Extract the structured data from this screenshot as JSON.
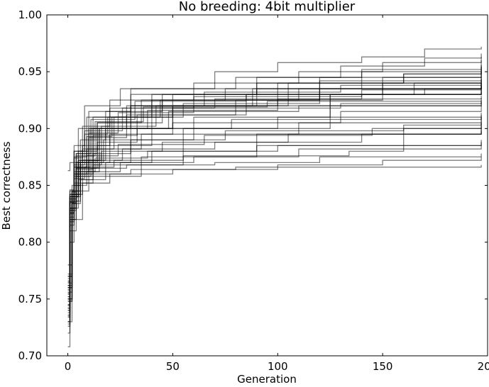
{
  "chart_data": {
    "type": "line",
    "title": "No breeding: 4bit multiplier",
    "xlabel": "Generation",
    "ylabel": "Best correctness",
    "xlim": [
      -10,
      200
    ],
    "ylim": [
      0.7,
      1.0
    ],
    "xticks": [
      0,
      50,
      100,
      150,
      200
    ],
    "yticks": [
      0.7,
      0.75,
      0.8,
      0.85,
      0.9,
      0.95,
      1.0
    ],
    "xtick_labels": [
      "0",
      "50",
      "100",
      "150",
      "200"
    ],
    "ytick_labels": [
      "0.70",
      "0.75",
      "0.80",
      "0.85",
      "0.90",
      "0.95",
      "1.00"
    ],
    "grid": false,
    "legend": "none",
    "line_color": "#000000",
    "series": [
      {
        "x": [
          0,
          1,
          3,
          10,
          30,
          70,
          100,
          140,
          170,
          197
        ],
        "y": [
          0.762,
          0.84,
          0.88,
          0.915,
          0.935,
          0.95,
          0.958,
          0.963,
          0.97,
          0.972
        ]
      },
      {
        "x": [
          0,
          1,
          4,
          12,
          40,
          90,
          130,
          170,
          197
        ],
        "y": [
          0.74,
          0.83,
          0.87,
          0.91,
          0.93,
          0.945,
          0.955,
          0.962,
          0.966
        ]
      },
      {
        "x": [
          0,
          2,
          5,
          20,
          60,
          110,
          150,
          197
        ],
        "y": [
          0.77,
          0.845,
          0.9,
          0.925,
          0.94,
          0.95,
          0.958,
          0.963
        ]
      },
      {
        "x": [
          0,
          1,
          3,
          8,
          25,
          80,
          140,
          197
        ],
        "y": [
          0.75,
          0.835,
          0.885,
          0.92,
          0.935,
          0.945,
          0.952,
          0.956
        ]
      },
      {
        "x": [
          0,
          1,
          4,
          15,
          50,
          120,
          197
        ],
        "y": [
          0.73,
          0.82,
          0.865,
          0.9,
          0.93,
          0.945,
          0.954
        ]
      },
      {
        "x": [
          0,
          2,
          6,
          18,
          45,
          100,
          160,
          197
        ],
        "y": [
          0.78,
          0.85,
          0.89,
          0.915,
          0.93,
          0.94,
          0.948,
          0.952
        ]
      },
      {
        "x": [
          0,
          1,
          3,
          9,
          30,
          90,
          197
        ],
        "y": [
          0.745,
          0.83,
          0.875,
          0.91,
          0.93,
          0.94,
          0.945
        ]
      },
      {
        "x": [
          0,
          1,
          5,
          14,
          35,
          75,
          150,
          197
        ],
        "y": [
          0.755,
          0.84,
          0.88,
          0.905,
          0.925,
          0.935,
          0.94,
          0.943
        ]
      },
      {
        "x": [
          0,
          2,
          4,
          10,
          28,
          65,
          130,
          197
        ],
        "y": [
          0.76,
          0.845,
          0.87,
          0.9,
          0.92,
          0.932,
          0.938,
          0.94
        ]
      },
      {
        "x": [
          0,
          1,
          3,
          12,
          40,
          110,
          197
        ],
        "y": [
          0.728,
          0.815,
          0.86,
          0.9,
          0.925,
          0.935,
          0.938
        ]
      },
      {
        "x": [
          0,
          1,
          4,
          11,
          32,
          85,
          170,
          197
        ],
        "y": [
          0.768,
          0.838,
          0.878,
          0.908,
          0.924,
          0.93,
          0.935,
          0.937
        ]
      },
      {
        "x": [
          0,
          2,
          7,
          22,
          55,
          120,
          197
        ],
        "y": [
          0.772,
          0.842,
          0.882,
          0.91,
          0.922,
          0.93,
          0.934
        ]
      },
      {
        "x": [
          0,
          1,
          3,
          8,
          26,
          70,
          140,
          197
        ],
        "y": [
          0.742,
          0.828,
          0.868,
          0.898,
          0.918,
          0.926,
          0.93,
          0.932
        ]
      },
      {
        "x": [
          0,
          1,
          5,
          16,
          42,
          100,
          197
        ],
        "y": [
          0.752,
          0.836,
          0.872,
          0.902,
          0.92,
          0.926,
          0.929
        ]
      },
      {
        "x": [
          0,
          2,
          4,
          13,
          36,
          95,
          197
        ],
        "y": [
          0.764,
          0.844,
          0.876,
          0.906,
          0.919,
          0.924,
          0.927
        ]
      },
      {
        "x": [
          0,
          1,
          3,
          10,
          24,
          60,
          197
        ],
        "y": [
          0.736,
          0.826,
          0.862,
          0.896,
          0.914,
          0.92,
          0.925
        ]
      },
      {
        "x": [
          0,
          1,
          4,
          9,
          21,
          50,
          130,
          197
        ],
        "y": [
          0.758,
          0.838,
          0.866,
          0.893,
          0.91,
          0.918,
          0.922,
          0.924
        ]
      },
      {
        "x": [
          0,
          2,
          6,
          20,
          48,
          110,
          197
        ],
        "y": [
          0.748,
          0.834,
          0.87,
          0.9,
          0.915,
          0.92,
          0.923
        ]
      },
      {
        "x": [
          0,
          1,
          3,
          7,
          20,
          60,
          140,
          197
        ],
        "y": [
          0.766,
          0.846,
          0.874,
          0.902,
          0.918,
          0.928,
          0.934,
          0.936
        ]
      },
      {
        "x": [
          0,
          1,
          4,
          12,
          33,
          80,
          150,
          197
        ],
        "y": [
          0.744,
          0.83,
          0.864,
          0.894,
          0.912,
          0.925,
          0.935,
          0.94
        ]
      },
      {
        "x": [
          0,
          2,
          5,
          15,
          38,
          100,
          165,
          197
        ],
        "y": [
          0.756,
          0.84,
          0.872,
          0.9,
          0.916,
          0.93,
          0.94,
          0.944
        ]
      },
      {
        "x": [
          0,
          1,
          3,
          11,
          30,
          90,
          197
        ],
        "y": [
          0.738,
          0.826,
          0.866,
          0.9,
          0.92,
          0.935,
          0.942
        ]
      },
      {
        "x": [
          0,
          1,
          4,
          14,
          45,
          120,
          197
        ],
        "y": [
          0.76,
          0.842,
          0.878,
          0.905,
          0.925,
          0.942,
          0.95
        ]
      },
      {
        "x": [
          0,
          2,
          6,
          18,
          50,
          105,
          160,
          197
        ],
        "y": [
          0.75,
          0.836,
          0.872,
          0.9,
          0.92,
          0.94,
          0.948,
          0.955
        ]
      },
      {
        "x": [
          0,
          1,
          3,
          10,
          28,
          85,
          150,
          197
        ],
        "y": [
          0.73,
          0.822,
          0.86,
          0.892,
          0.912,
          0.93,
          0.945,
          0.95
        ]
      },
      {
        "x": [
          0,
          1,
          5,
          17,
          60,
          125,
          197
        ],
        "y": [
          0.762,
          0.842,
          0.87,
          0.89,
          0.91,
          0.93,
          0.94
        ]
      },
      {
        "x": [
          0,
          2,
          4,
          14,
          40,
          100,
          197
        ],
        "y": [
          0.748,
          0.834,
          0.865,
          0.885,
          0.9,
          0.91,
          0.914
        ]
      },
      {
        "x": [
          0,
          1,
          3,
          9,
          35,
          110,
          197
        ],
        "y": [
          0.758,
          0.84,
          0.866,
          0.882,
          0.895,
          0.905,
          0.91
        ]
      },
      {
        "x": [
          0,
          1,
          4,
          12,
          30,
          75,
          160,
          197
        ],
        "y": [
          0.742,
          0.83,
          0.86,
          0.878,
          0.89,
          0.898,
          0.903,
          0.905
        ]
      },
      {
        "x": [
          0,
          2,
          6,
          16,
          45,
          105,
          197
        ],
        "y": [
          0.77,
          0.845,
          0.868,
          0.88,
          0.888,
          0.895,
          0.9
        ]
      },
      {
        "x": [
          0,
          1,
          3,
          10,
          26,
          70,
          140,
          197
        ],
        "y": [
          0.735,
          0.825,
          0.858,
          0.872,
          0.882,
          0.888,
          0.895,
          0.898
        ]
      },
      {
        "x": [
          0,
          1,
          4,
          13,
          38,
          90,
          197
        ],
        "y": [
          0.752,
          0.836,
          0.862,
          0.874,
          0.88,
          0.885,
          0.888
        ]
      },
      {
        "x": [
          0,
          1,
          3,
          8,
          22,
          55,
          134,
          160,
          197
        ],
        "y": [
          0.745,
          0.83,
          0.856,
          0.866,
          0.872,
          0.876,
          0.88,
          0.9,
          0.905
        ]
      },
      {
        "x": [
          0,
          2,
          5,
          15,
          40,
          100,
          197
        ],
        "y": [
          0.76,
          0.84,
          0.862,
          0.87,
          0.88,
          0.885,
          0.89
        ]
      },
      {
        "x": [
          0,
          1,
          3,
          9,
          25,
          60,
          110,
          197
        ],
        "y": [
          0.726,
          0.818,
          0.85,
          0.862,
          0.87,
          0.875,
          0.882,
          0.885
        ]
      },
      {
        "x": [
          0,
          1,
          4,
          11,
          28,
          70,
          120,
          197
        ],
        "y": [
          0.754,
          0.835,
          0.858,
          0.865,
          0.868,
          0.87,
          0.875,
          0.878
        ]
      },
      {
        "x": [
          0,
          2,
          7,
          20,
          50,
          100,
          150,
          197
        ],
        "y": [
          0.73,
          0.82,
          0.852,
          0.86,
          0.864,
          0.868,
          0.872,
          0.875
        ]
      },
      {
        "x": [
          0,
          1,
          3,
          6,
          12,
          30,
          80,
          197
        ],
        "y": [
          0.708,
          0.8,
          0.84,
          0.855,
          0.86,
          0.864,
          0.866,
          0.868
        ]
      },
      {
        "x": [
          0,
          1,
          4,
          10,
          35,
          90,
          197
        ],
        "y": [
          0.72,
          0.81,
          0.845,
          0.858,
          0.875,
          0.895,
          0.912
        ]
      },
      {
        "x": [
          0,
          1,
          3,
          12,
          55,
          125,
          197
        ],
        "y": [
          0.734,
          0.82,
          0.852,
          0.868,
          0.9,
          0.93,
          0.938
        ]
      },
      {
        "x": [
          0,
          2,
          5,
          18,
          30,
          88,
          140,
          197
        ],
        "y": [
          0.75,
          0.83,
          0.855,
          0.87,
          0.92,
          0.935,
          0.95,
          0.96
        ]
      },
      {
        "x": [
          0,
          1,
          3,
          7,
          20,
          50,
          130,
          197
        ],
        "y": [
          0.765,
          0.845,
          0.87,
          0.885,
          0.895,
          0.905,
          0.915,
          0.92
        ]
      },
      {
        "x": [
          0,
          1,
          4,
          9,
          24,
          65,
          145,
          197
        ],
        "y": [
          0.74,
          0.828,
          0.86,
          0.876,
          0.886,
          0.894,
          0.9,
          0.902
        ]
      },
      {
        "x": [
          0,
          2,
          6,
          14,
          33,
          78,
          197
        ],
        "y": [
          0.762,
          0.842,
          0.87,
          0.888,
          0.9,
          0.908,
          0.91
        ]
      },
      {
        "x": [
          0,
          1,
          3,
          8,
          19,
          44,
          120,
          197
        ],
        "y": [
          0.863,
          0.87,
          0.88,
          0.895,
          0.91,
          0.925,
          0.935,
          0.94
        ]
      }
    ]
  }
}
